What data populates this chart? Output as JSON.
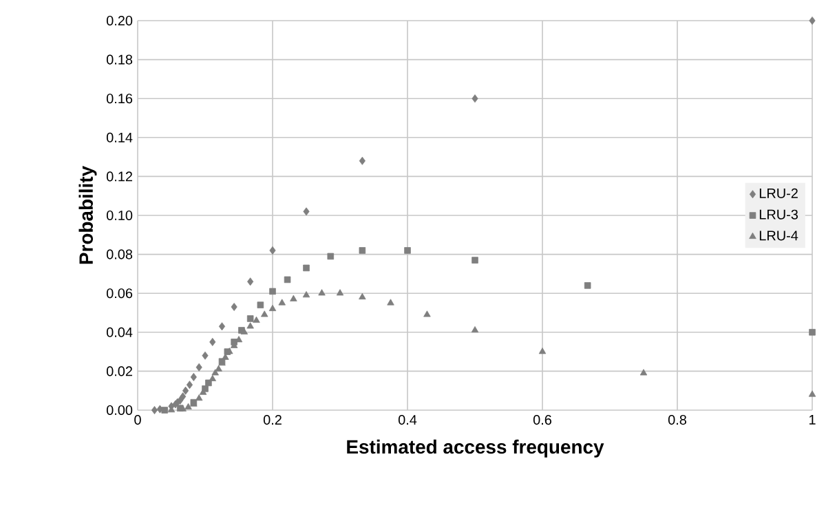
{
  "chart_data": {
    "type": "scatter",
    "xlabel": "Estimated access frequency",
    "ylabel": "Probability",
    "xlim": [
      0,
      1
    ],
    "xticks": [
      0,
      0.2,
      0.4,
      0.6,
      0.8,
      1
    ],
    "ylim": [
      0,
      0.2
    ],
    "yticks": [
      {
        "value": 0,
        "label": "0.00"
      },
      {
        "value": 0.02,
        "label": "0.02"
      },
      {
        "value": 0.04,
        "label": "0.04"
      },
      {
        "value": 0.06,
        "label": "0.06"
      },
      {
        "value": 0.08,
        "label": "0.08"
      },
      {
        "value": 0.1,
        "label": "0.10"
      },
      {
        "value": 0.12,
        "label": "0.12"
      },
      {
        "value": 0.14,
        "label": "0.14"
      },
      {
        "value": 0.16,
        "label": "0.16"
      },
      {
        "value": 0.18,
        "label": "0.18"
      },
      {
        "value": 0.2,
        "label": "0.20"
      }
    ],
    "grid": true,
    "legend": "right",
    "series": [
      {
        "name": "LRU-2",
        "color": "#7f7f7f",
        "marker": "diamond",
        "x": [
          1,
          0.5,
          0.333,
          0.25,
          0.2,
          0.167,
          0.143,
          0.125,
          0.111,
          0.1,
          0.091,
          0.083,
          0.077,
          0.071,
          0.067,
          0.063,
          0.059,
          0.056,
          0.05,
          0.033,
          0.025
        ],
        "values": [
          0.2,
          0.16,
          0.128,
          0.102,
          0.082,
          0.066,
          0.053,
          0.043,
          0.035,
          0.028,
          0.022,
          0.017,
          0.013,
          0.01,
          0.007,
          0.005,
          0.004,
          0.003,
          0.002,
          0.0005,
          0
        ]
      },
      {
        "name": "LRU-3",
        "color": "#7f7f7f",
        "marker": "square",
        "x": [
          1,
          0.667,
          0.5,
          0.4,
          0.333,
          0.286,
          0.25,
          0.222,
          0.2,
          0.182,
          0.167,
          0.154,
          0.143,
          0.133,
          0.125,
          0.105,
          0.1,
          0.083,
          0.063,
          0.04
        ],
        "values": [
          0.04,
          0.064,
          0.077,
          0.082,
          0.082,
          0.079,
          0.073,
          0.067,
          0.061,
          0.054,
          0.047,
          0.041,
          0.035,
          0.03,
          0.025,
          0.014,
          0.011,
          0.004,
          0.001,
          0
        ]
      },
      {
        "name": "LRU-4",
        "color": "#7f7f7f",
        "marker": "triangle",
        "x": [
          1,
          0.75,
          0.6,
          0.5,
          0.429,
          0.375,
          0.333,
          0.3,
          0.273,
          0.25,
          0.231,
          0.214,
          0.2,
          0.188,
          0.176,
          0.167,
          0.158,
          0.15,
          0.143,
          0.136,
          0.13,
          0.125,
          0.12,
          0.115,
          0.111,
          0.097,
          0.091,
          0.083,
          0.075,
          0.067,
          0.05
        ],
        "values": [
          0.008,
          0.019,
          0.03,
          0.041,
          0.049,
          0.055,
          0.058,
          0.06,
          0.06,
          0.059,
          0.057,
          0.055,
          0.052,
          0.049,
          0.046,
          0.043,
          0.04,
          0.036,
          0.033,
          0.03,
          0.027,
          0.024,
          0.021,
          0.019,
          0.016,
          0.009,
          0.006,
          0.003,
          0.0015,
          0.0005,
          0
        ]
      }
    ]
  }
}
